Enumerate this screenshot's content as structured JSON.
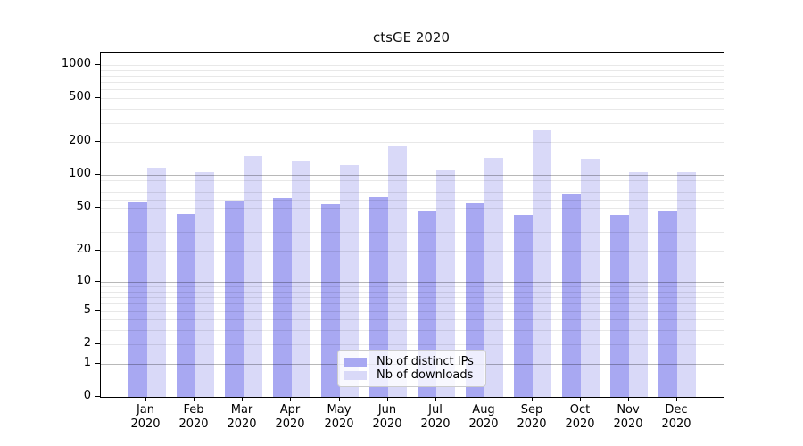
{
  "title": "ctsGE 2020",
  "chart_data": {
    "type": "bar",
    "title": "ctsGE 2020",
    "yscale": "log1p",
    "categories": [
      "Jan 2020",
      "Feb 2020",
      "Mar 2020",
      "Apr 2020",
      "May 2020",
      "Jun 2020",
      "Jul 2020",
      "Aug 2020",
      "Sep 2020",
      "Oct 2020",
      "Nov 2020",
      "Dec 2020"
    ],
    "series": [
      {
        "name": "Nb of distinct IPs",
        "color": "#a8a8f2",
        "values": [
          56,
          44,
          59,
          62,
          54,
          63,
          47,
          55,
          43,
          68,
          43,
          47
        ]
      },
      {
        "name": "Nb of downloads",
        "color": "#d9d9f8",
        "values": [
          118,
          107,
          150,
          133,
          124,
          185,
          110,
          145,
          255,
          140,
          107,
          106
        ]
      }
    ],
    "yticks": [
      0,
      1,
      2,
      5,
      10,
      20,
      50,
      100,
      200,
      500,
      1000
    ],
    "ylim": [
      0,
      1300
    ],
    "grid": "horizontal",
    "major_grid_values": [
      1,
      10,
      100
    ],
    "minor_grid_values": [
      2,
      3,
      4,
      5,
      6,
      7,
      8,
      9,
      20,
      30,
      40,
      50,
      60,
      70,
      80,
      90,
      200,
      300,
      400,
      500,
      600,
      700,
      800,
      900,
      1000
    ],
    "legend_position": "lower center",
    "xlabel": "",
    "ylabel": ""
  },
  "legend": {
    "items": [
      {
        "label": "Nb of distinct IPs"
      },
      {
        "label": "Nb of downloads"
      }
    ]
  }
}
